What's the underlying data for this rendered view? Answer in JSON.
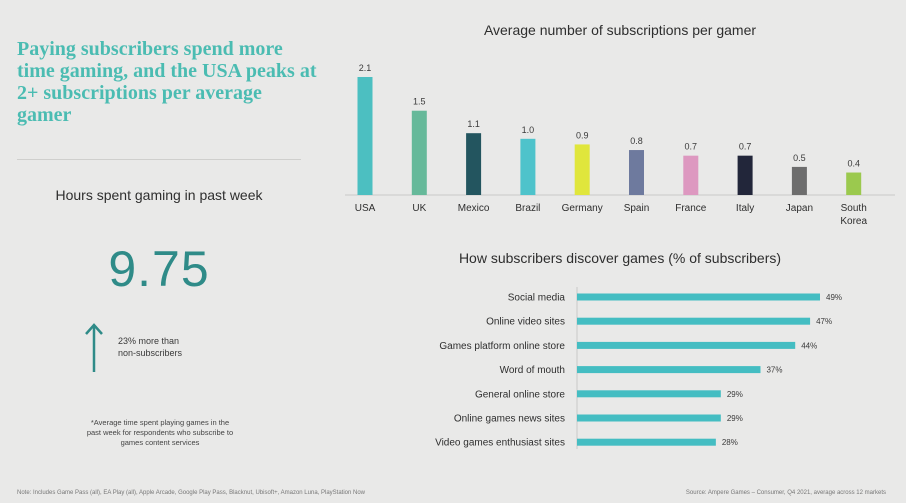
{
  "headline": "Paying subscribers spend more time gaming, and the USA peaks at 2+ subscriptions per average gamer",
  "hours": {
    "title": "Hours spent gaming in past week",
    "value": "9.75",
    "compare_line1": "23% more than",
    "compare_line2": "non-subscribers",
    "footnote_line1": "*Average time spent playing games in the",
    "footnote_line2": "past week for respondents who subscribe to",
    "footnote_line3": "games content services"
  },
  "note": "Note: Includes Game Pass (all), EA Play (all), Apple Arcade, Google Play Pass, Blacknut, Ubisoft+, Amazon Luna, PlayStation Now",
  "source": "Source: Ampere Games – Consumer, Q4 2021, average across 12 markets",
  "colors": {
    "accent": "#4bbcb2",
    "big_number": "#2f8b88",
    "hbar": "#44bdc2"
  },
  "chart_data": [
    {
      "type": "bar",
      "title": "Average number of subscriptions per gamer",
      "categories": [
        "USA",
        "UK",
        "Mexico",
        "Brazil",
        "Germany",
        "Spain",
        "France",
        "Italy",
        "Japan",
        "South Korea"
      ],
      "values": [
        2.1,
        1.5,
        1.1,
        1.0,
        0.9,
        0.8,
        0.7,
        0.7,
        0.5,
        0.4
      ],
      "value_labels": [
        "2.1",
        "1.5",
        "1.1",
        "1.0",
        "0.9",
        "0.8",
        "0.7",
        "0.7",
        "0.5",
        "0.4"
      ],
      "colors": [
        "#4cbfc1",
        "#66b99a",
        "#23555f",
        "#4ec3cb",
        "#e0e63c",
        "#6e7a9e",
        "#dd98c0",
        "#22263a",
        "#6d6d6d",
        "#9bc94e"
      ],
      "ylim": [
        0,
        2.1
      ]
    },
    {
      "type": "bar",
      "orientation": "horizontal",
      "title": "How subscribers discover games (% of subscribers)",
      "categories": [
        "Social media",
        "Online video sites",
        "Games platform online store",
        "Word of mouth",
        "General online store",
        "Online games news sites",
        "Video games enthusiast sites"
      ],
      "values": [
        49,
        47,
        44,
        37,
        29,
        29,
        28
      ],
      "value_labels": [
        "49%",
        "47%",
        "44%",
        "37%",
        "29%",
        "29%",
        "28%"
      ],
      "xlim": [
        0,
        49
      ]
    }
  ]
}
